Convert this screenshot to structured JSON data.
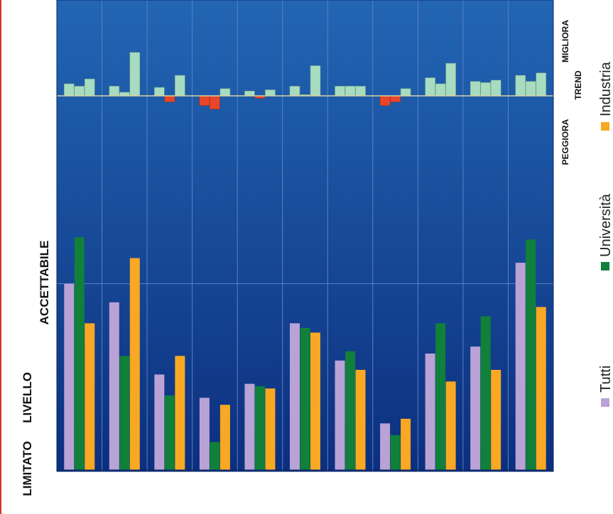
{
  "colors": {
    "plot_top": "#2266b4",
    "plot_bottom": "#0c2f7e",
    "gridline": "#5a82c4",
    "trend_positive": "#a8dcc0",
    "trend_negative": "#e8462a",
    "trend_baseline": "#d8d2a0",
    "tutti": "#b9a2d6",
    "universita": "#11803a",
    "industria": "#f8a823",
    "accent_edge": "#d9302a"
  },
  "chart_data": [
    {
      "type": "bar",
      "panel": "trend",
      "axis_label": "TREND",
      "top_label": "MIGLIORA",
      "bottom_label": "PEGGIORA",
      "grid": true,
      "series": [
        {
          "values": [
            1.0,
            0.8,
            0.7,
            -0.8,
            0.4,
            0.8,
            0.8,
            -0.8,
            1.5,
            1.2,
            1.7
          ]
        },
        {
          "values": [
            0.8,
            0.3,
            -0.5,
            -1.1,
            -0.2,
            0.1,
            0.8,
            -0.5,
            1.0,
            1.1,
            1.2
          ]
        },
        {
          "values": [
            1.4,
            3.6,
            1.7,
            0.6,
            0.5,
            2.5,
            0.8,
            0.6,
            2.7,
            1.3,
            1.9
          ]
        }
      ]
    },
    {
      "type": "bar",
      "panel": "livello",
      "axis_label": "LIVELLO",
      "top_label": "ACCETTABILE",
      "bottom_label": "LIMITATO",
      "legend_position": "right",
      "grid": true,
      "series": [
        {
          "name": "Tutti",
          "values": [
            80,
            72,
            41,
            31,
            37,
            63,
            47,
            20,
            50,
            53,
            89
          ]
        },
        {
          "name": "Università",
          "values": [
            100,
            49,
            32,
            12,
            36,
            61,
            51,
            15,
            63,
            66,
            99
          ]
        },
        {
          "name": "Industria",
          "values": [
            63,
            91,
            49,
            28,
            35,
            59,
            43,
            22,
            38,
            43,
            70
          ]
        }
      ]
    }
  ]
}
